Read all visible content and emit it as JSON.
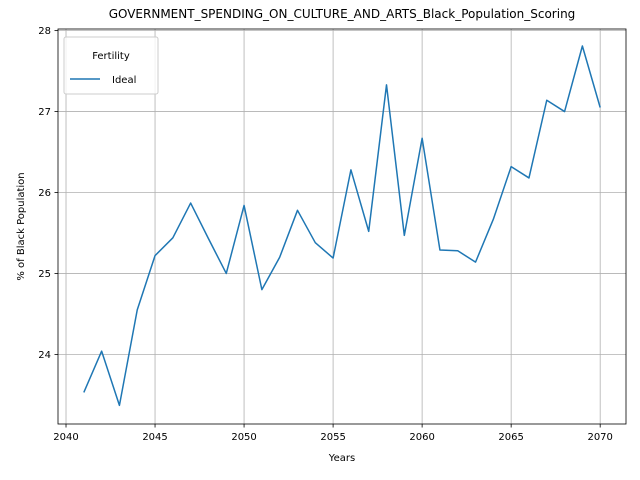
{
  "chart_data": {
    "type": "line",
    "title": "GOVERNMENT_SPENDING_ON_CULTURE_AND_ARTS_Black_Population_Scoring",
    "xlabel": "Years",
    "ylabel": "% of Black Population",
    "xlim": [
      2039.55,
      2071.45
    ],
    "ylim": [
      23.14,
      28.02
    ],
    "grid": true,
    "legend": {
      "title": "Fertility",
      "placement": "top-left"
    },
    "x_ticks": [
      2040,
      2045,
      2050,
      2055,
      2060,
      2065,
      2070
    ],
    "y_ticks": [
      24,
      25,
      26,
      27,
      28
    ],
    "x": [
      2041,
      2042,
      2043,
      2044,
      2045,
      2046,
      2047,
      2048,
      2049,
      2050,
      2051,
      2052,
      2053,
      2054,
      2055,
      2056,
      2057,
      2058,
      2059,
      2060,
      2061,
      2062,
      2063,
      2064,
      2065,
      2066,
      2067,
      2068,
      2069,
      2070
    ],
    "series": [
      {
        "name": "Ideal",
        "color": "#1f77b4",
        "values": [
          23.53,
          24.04,
          23.37,
          24.55,
          25.22,
          25.44,
          25.87,
          25.43,
          25.0,
          25.84,
          24.8,
          25.2,
          25.78,
          25.38,
          25.19,
          26.28,
          25.52,
          27.33,
          25.47,
          26.67,
          25.29,
          25.28,
          25.14,
          25.67,
          26.32,
          26.18,
          27.14,
          27.0,
          27.81,
          27.05
        ]
      }
    ]
  }
}
